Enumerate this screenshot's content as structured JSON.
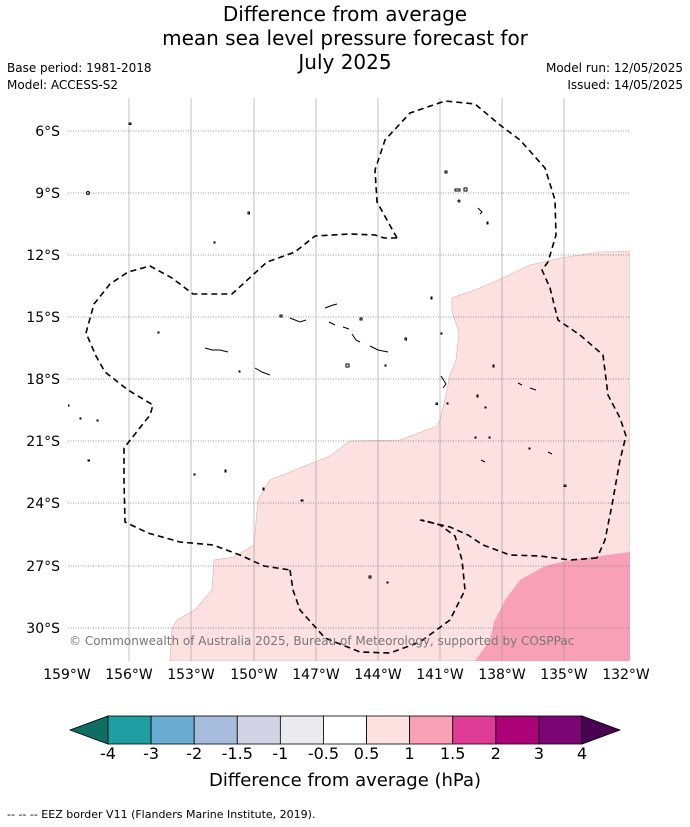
{
  "title": {
    "line1": "Difference from average",
    "line2": "mean sea level pressure forecast for",
    "line3": "July 2025"
  },
  "meta_left": {
    "base_period": "Base period: 1981-2018",
    "model": "Model: ACCESS-S2"
  },
  "meta_right": {
    "model_run": "Model run: 12/05/2025",
    "issued": "Issued: 14/05/2025"
  },
  "latitude_labels": [
    "6°S",
    "9°S",
    "12°S",
    "15°S",
    "18°S",
    "21°S",
    "24°S",
    "27°S",
    "30°S"
  ],
  "longitude_labels": [
    "159°W",
    "156°W",
    "153°W",
    "150°W",
    "147°W",
    "144°W",
    "141°W",
    "138°W",
    "135°W",
    "132°W"
  ],
  "copyright": "© Commonwealth of Australia 2025, Bureau of Meteorology, supported by COSPPac",
  "colorbar": {
    "title": "Difference from average (hPa)",
    "tick_labels": [
      "-4",
      "-3",
      "-2",
      "-1.5",
      "-1",
      "-0.5",
      "0.5",
      "1",
      "1.5",
      "2",
      "3",
      "4"
    ],
    "colors": [
      "#0f6e62",
      "#1f9da0",
      "#6aacd2",
      "#a8bcdd",
      "#d3d3e6",
      "#eaeaef",
      "#ffffff",
      "#fde0e0",
      "#f8a0b6",
      "#de3b96",
      "#ac0478",
      "#7c0576",
      "#4a0352"
    ]
  },
  "map_colors": {
    "light_positive": "#fde0e0",
    "medium_positive": "#f8a0b6"
  },
  "footnote": "--  --  -- EEZ border V11 (Flanders Marine Institute, 2019)."
}
